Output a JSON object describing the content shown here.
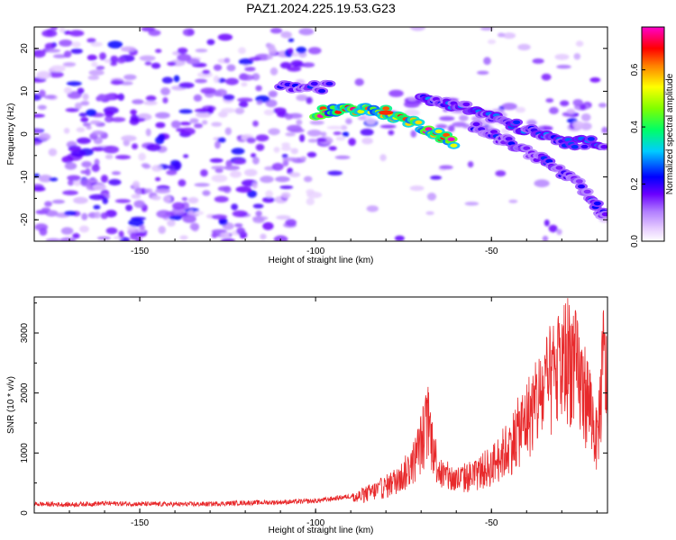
{
  "figure": {
    "title": "PAZ1.2024.225.19.53.G23"
  },
  "colors": {
    "snr_line": "#e8292b",
    "colormap": [
      "#ffffff",
      "#e6ccff",
      "#8a2be2",
      "#6a00ff",
      "#0000ff",
      "#00ffff",
      "#00ff00",
      "#ffff00",
      "#ff0000",
      "#ff00ff"
    ]
  },
  "chart_data": [
    {
      "type": "heatmap",
      "title": "",
      "xlabel": "Height of straight line (km)",
      "ylabel": "Frequency (Hz)",
      "xlim": [
        -180,
        -17
      ],
      "ylim": [
        -25,
        25
      ],
      "xticks": [
        -150,
        -100,
        -50
      ],
      "yticks": [
        -20,
        -10,
        0,
        10,
        20
      ],
      "colorbar": {
        "label": "Normalized spectral amplitude",
        "range": [
          0.0,
          0.75
        ],
        "ticks": [
          "0.0",
          "0.2",
          "0.4",
          "0.6"
        ]
      },
      "features": [
        {
          "x": [
            -110,
            -95
          ],
          "y": [
            11,
            11
          ],
          "amplitude": 0.25
        },
        {
          "x": [
            -100,
            -90,
            -80,
            -70,
            -60
          ],
          "y": [
            5,
            6,
            5,
            2,
            -2
          ],
          "amplitude": 0.75
        },
        {
          "x": [
            -70,
            -60,
            -50,
            -40,
            -30,
            -17
          ],
          "y": [
            8,
            7,
            4,
            1,
            -2,
            -2
          ],
          "amplitude": 0.3
        },
        {
          "x": [
            -55,
            -45,
            -35,
            -25,
            -17
          ],
          "y": [
            2,
            -2,
            -6,
            -12,
            -20
          ],
          "amplitude": 0.25
        }
      ]
    },
    {
      "type": "line",
      "title": "",
      "xlabel": "Height of straight line (km)",
      "ylabel": "SNR (10 * v/v)",
      "xlim": [
        -180,
        -17
      ],
      "ylim": [
        0,
        3600
      ],
      "xticks": [
        -150,
        -100,
        -50
      ],
      "yticks": [
        0,
        1000,
        2000,
        3000
      ],
      "series": [
        {
          "x": [
            -180,
            -170,
            -160,
            -150,
            -140,
            -130,
            -120,
            -110,
            -100,
            -90,
            -85,
            -80,
            -75,
            -72,
            -70,
            -68,
            -66,
            -64,
            -60,
            -55,
            -50,
            -45,
            -40,
            -35,
            -32,
            -30,
            -28,
            -25,
            -22,
            -20,
            -18,
            -17
          ],
          "y": [
            150,
            140,
            160,
            150,
            145,
            150,
            170,
            180,
            200,
            280,
            420,
            560,
            800,
            1100,
            1500,
            1950,
            1200,
            800,
            700,
            800,
            1000,
            1400,
            2000,
            2600,
            2900,
            3100,
            3400,
            2800,
            2300,
            1500,
            3300,
            2500
          ]
        }
      ]
    }
  ]
}
